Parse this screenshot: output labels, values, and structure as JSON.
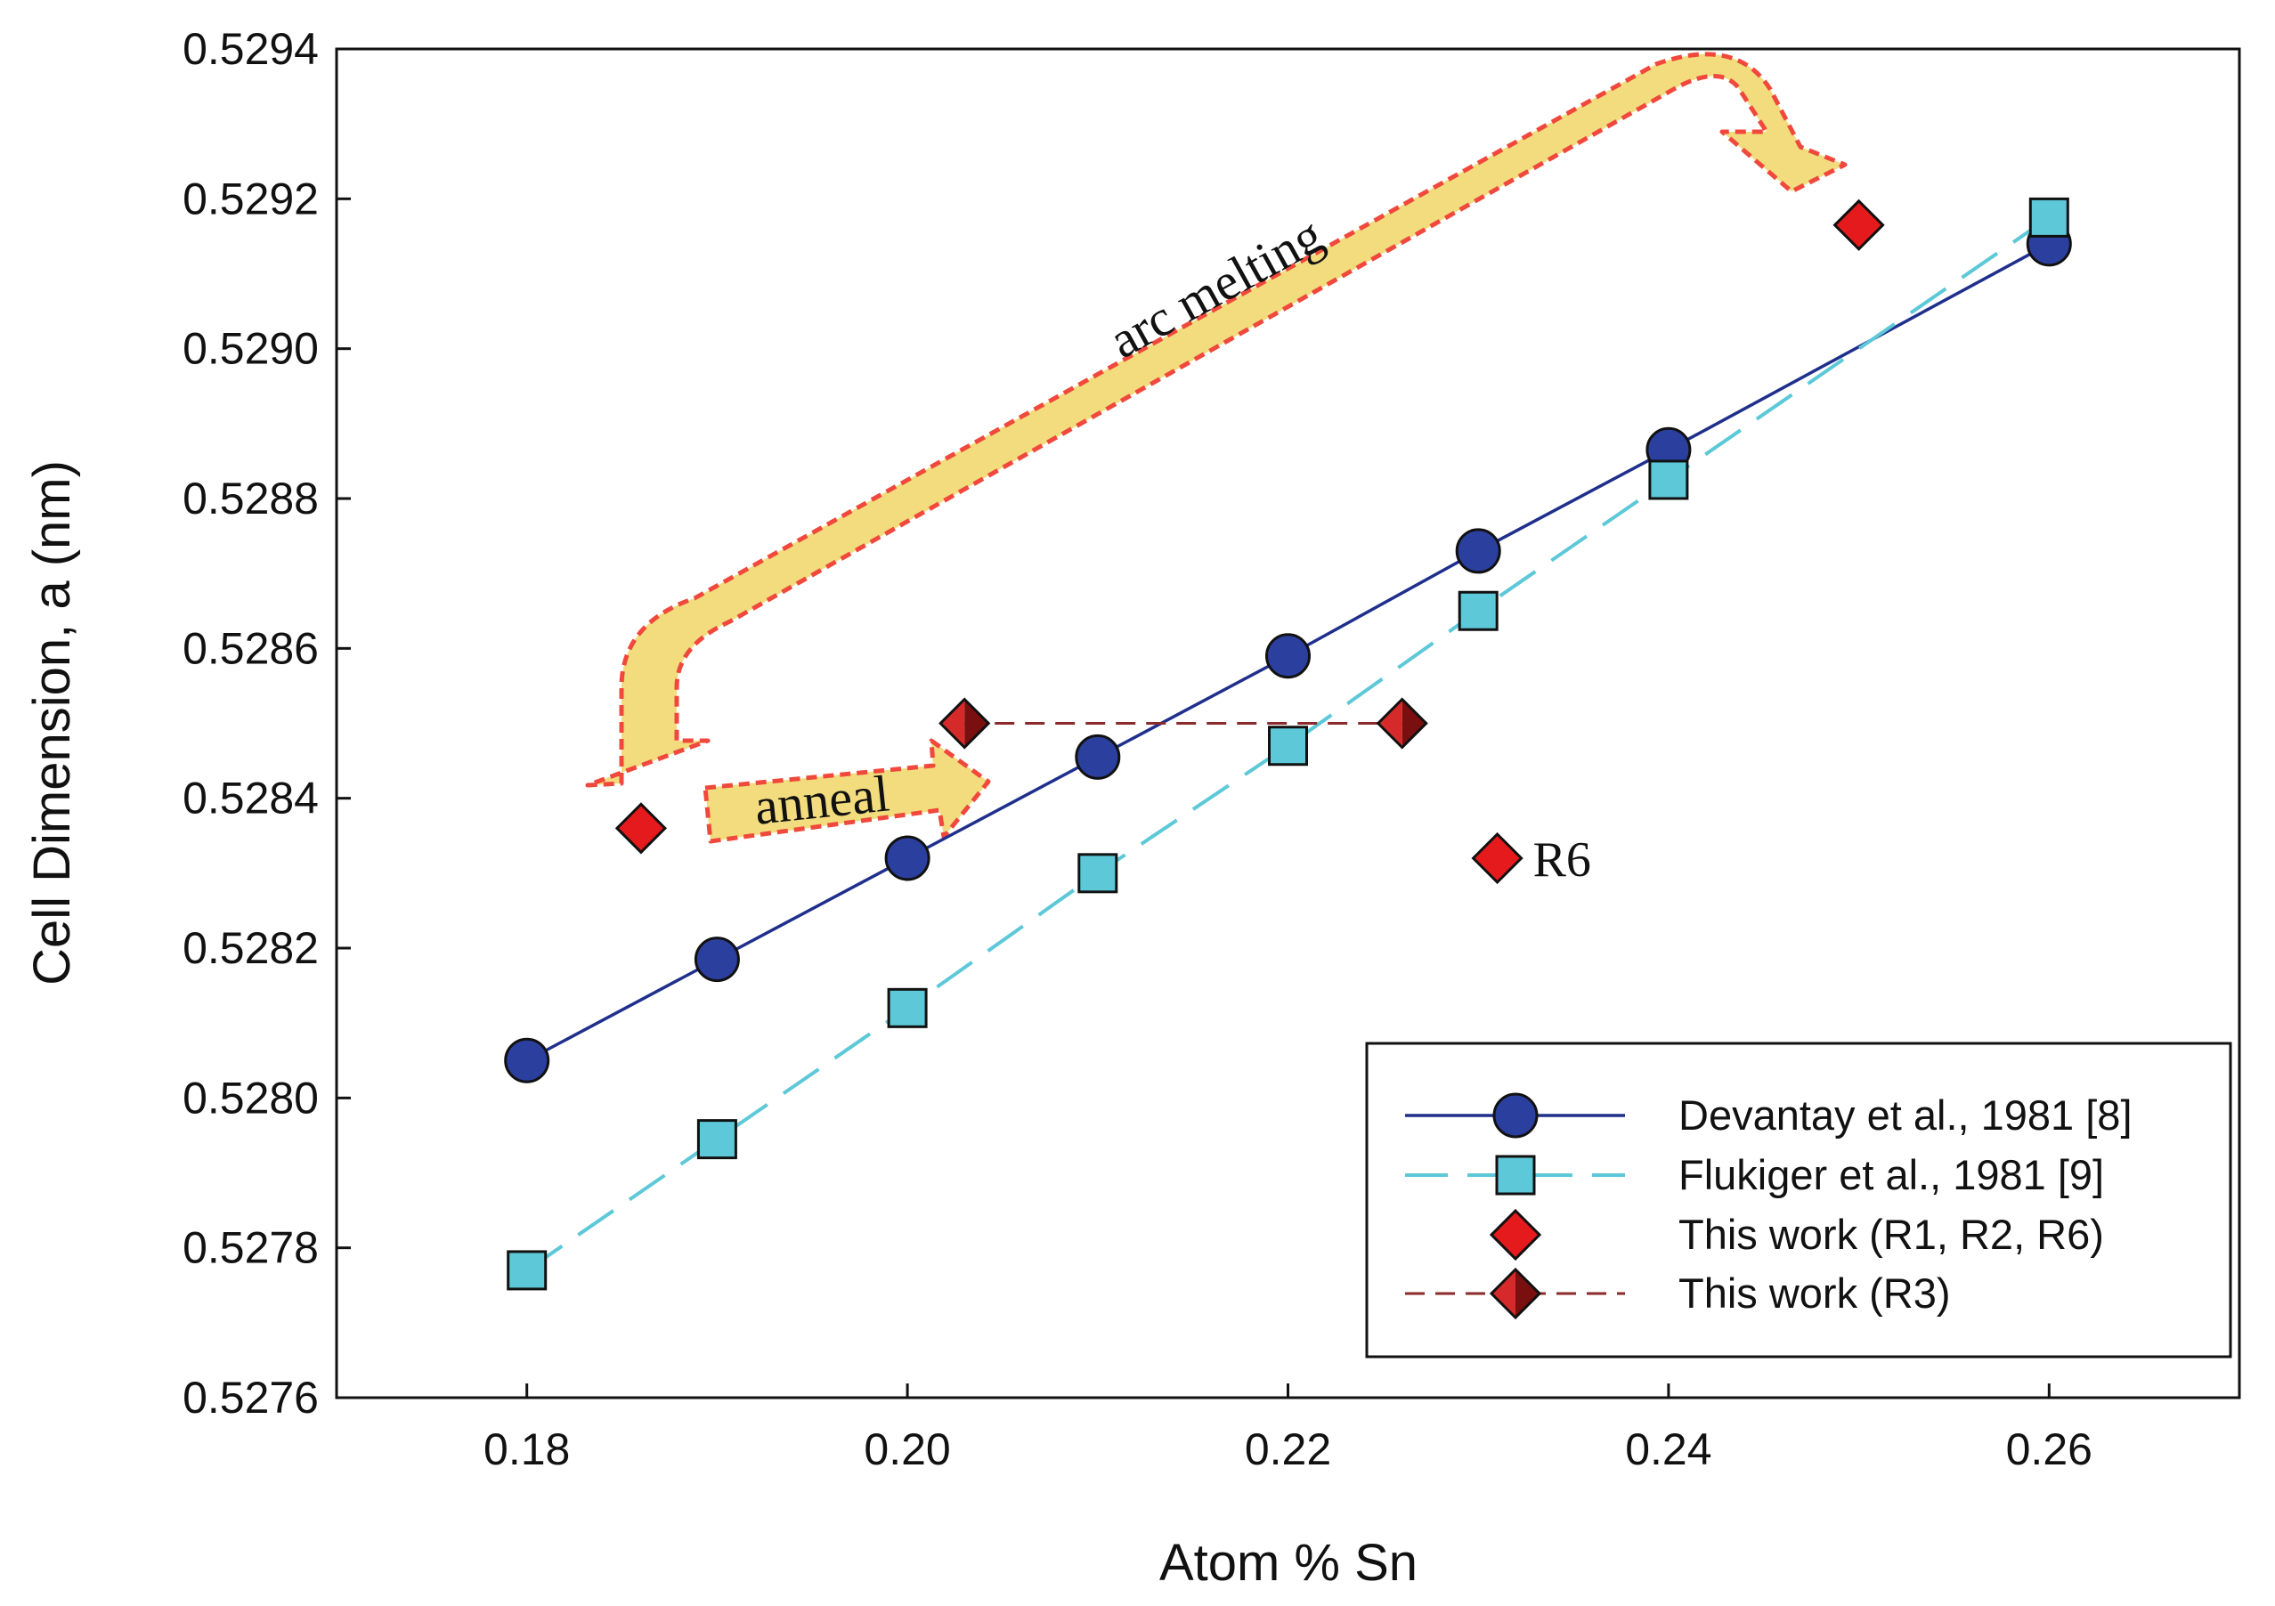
{
  "chart_data": {
    "type": "scatter",
    "xlabel": "Atom % Sn",
    "ylabel": "Cell Dimension, a (nm)",
    "xlim": [
      0.17,
      0.27
    ],
    "ylim": [
      0.5276,
      0.5294
    ],
    "x_ticks": [
      0.18,
      0.2,
      0.22,
      0.24,
      0.26
    ],
    "x_tick_labels": [
      "0.18",
      "0.20",
      "0.22",
      "0.24",
      "0.26"
    ],
    "y_ticks": [
      0.5276,
      0.5278,
      0.528,
      0.5282,
      0.5284,
      0.5286,
      0.5288,
      0.529,
      0.5292,
      0.5294
    ],
    "y_tick_labels": [
      "0.5276",
      "0.5278",
      "0.5280",
      "0.5282",
      "0.5284",
      "0.5286",
      "0.5288",
      "0.5290",
      "0.5292",
      "0.5294"
    ],
    "grid": false,
    "legend_position": "bottom-right",
    "series": [
      {
        "name": "Devantay et al., 1981 [8]",
        "style": "line-circle",
        "color": "#2b3f9e",
        "line_color": "#1f2f8c",
        "x": [
          0.18,
          0.19,
          0.2,
          0.21,
          0.22,
          0.23,
          0.24,
          0.26
        ],
        "y": [
          0.52805,
          0.528185,
          0.52832,
          0.528455,
          0.52859,
          0.52873,
          0.528865,
          0.52914
        ]
      },
      {
        "name": "Flukiger et al., 1981 [9]",
        "style": "dashed-square",
        "color": "#5cc8d8",
        "line_color": "#5cc8d8",
        "x": [
          0.18,
          0.19,
          0.2,
          0.21,
          0.22,
          0.23,
          0.24,
          0.26
        ],
        "y": [
          0.52777,
          0.527945,
          0.52812,
          0.5283,
          0.52847,
          0.52865,
          0.528825,
          0.529175
        ]
      },
      {
        "name": "This work (R1, R2, R6)",
        "style": "diamond",
        "color": "#e41a1c",
        "x": [
          0.186,
          0.231,
          0.25
        ],
        "y": [
          0.52836,
          0.52832,
          0.529165
        ]
      },
      {
        "name": "This work (R3)",
        "style": "dashed-diamond",
        "color": "#a01818",
        "line_color": "#8b2a2a",
        "x": [
          0.203,
          0.226
        ],
        "y": [
          0.5285,
          0.5285
        ]
      }
    ],
    "annotations": [
      {
        "id": "arc",
        "text": "arc melting"
      },
      {
        "id": "anneal",
        "text": "anneal"
      },
      {
        "id": "r6",
        "text": "R6",
        "x": 0.231,
        "y": 0.52832
      }
    ]
  },
  "colors": {
    "arrow_fill": "#f2dc7d",
    "arrow_border": "#f0483c"
  }
}
